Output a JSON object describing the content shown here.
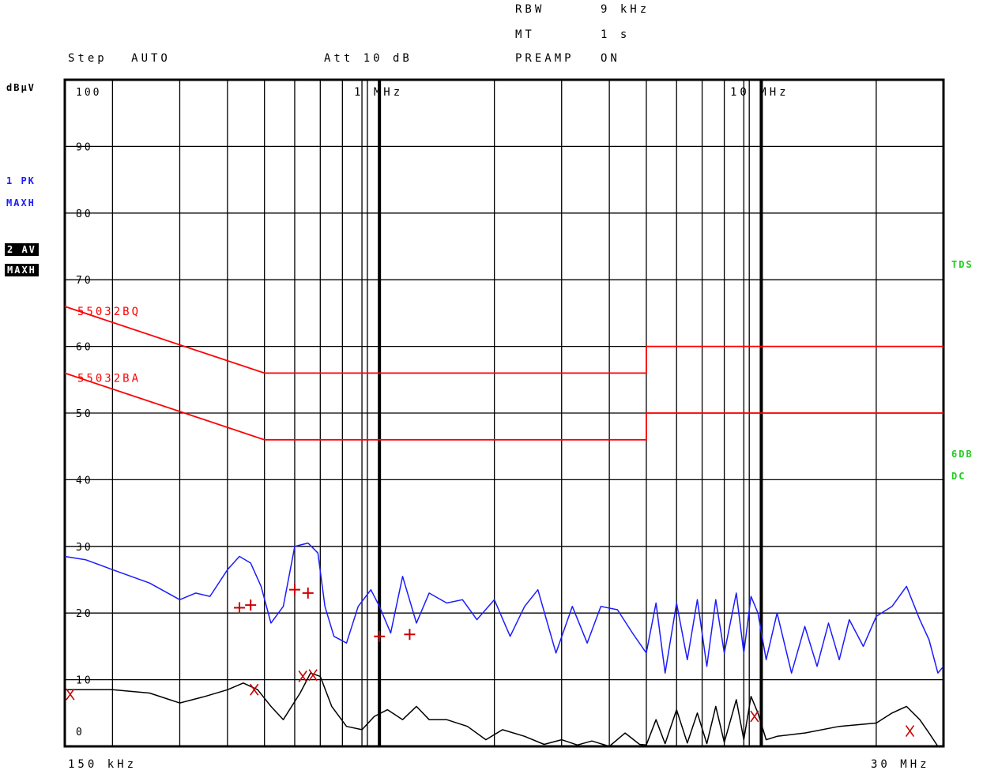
{
  "header": {
    "rbw_label": "RBW",
    "rbw_value": "9 kHz",
    "mt_label": "MT",
    "mt_value": "1 s",
    "preamp_label": "PREAMP",
    "preamp_value": "ON",
    "step": "Step AUTO",
    "att": "Att 10 dB"
  },
  "left_panel": {
    "unit": "dBµV",
    "trace1": "1 PK",
    "trace1_mode": "MAXH",
    "trace2": "2 AV",
    "trace2_mode": "MAXH"
  },
  "right_panel": {
    "tds": "TDS",
    "sixdb": "6DB",
    "dc": "DC"
  },
  "axis": {
    "x_start": "150 kHz",
    "x_end": "30 MHz",
    "mhz1": "1 MHz",
    "mhz10": "10 MHz"
  },
  "colors": {
    "peak": "#1c1cff",
    "average": "#000000",
    "limit": "#ff0000",
    "marker": "#cc0000",
    "status": "#22cc22"
  },
  "chart_data": {
    "type": "line",
    "x_scale": "log",
    "xlim_mhz": [
      0.15,
      30
    ],
    "ylim": [
      0,
      100
    ],
    "ylabel": "dBµV",
    "y_ticks": [
      0,
      10,
      20,
      30,
      40,
      50,
      60,
      70,
      80,
      90,
      100
    ],
    "limit_lines": [
      {
        "name": "55032BQ",
        "points_mhz_db": [
          [
            0.15,
            66
          ],
          [
            0.5,
            56
          ],
          [
            5,
            56
          ],
          [
            5,
            60
          ],
          [
            30,
            60
          ]
        ]
      },
      {
        "name": "55032BA",
        "points_mhz_db": [
          [
            0.15,
            56
          ],
          [
            0.5,
            46
          ],
          [
            5,
            46
          ],
          [
            5,
            50
          ],
          [
            30,
            50
          ]
        ]
      }
    ],
    "series": [
      {
        "name": "1 PK",
        "points_mhz_db": [
          [
            0.15,
            28.5
          ],
          [
            0.17,
            28
          ],
          [
            0.2,
            26.5
          ],
          [
            0.25,
            24.5
          ],
          [
            0.3,
            22
          ],
          [
            0.33,
            23
          ],
          [
            0.36,
            22.5
          ],
          [
            0.4,
            26.5
          ],
          [
            0.43,
            28.5
          ],
          [
            0.46,
            27.5
          ],
          [
            0.49,
            24
          ],
          [
            0.52,
            18.5
          ],
          [
            0.56,
            21
          ],
          [
            0.6,
            30
          ],
          [
            0.65,
            30.5
          ],
          [
            0.69,
            29
          ],
          [
            0.72,
            21
          ],
          [
            0.76,
            16.5
          ],
          [
            0.82,
            15.5
          ],
          [
            0.88,
            21
          ],
          [
            0.95,
            23.5
          ],
          [
            1.0,
            21
          ],
          [
            1.07,
            17
          ],
          [
            1.15,
            25.5
          ],
          [
            1.25,
            18.5
          ],
          [
            1.35,
            23
          ],
          [
            1.5,
            21.5
          ],
          [
            1.65,
            22
          ],
          [
            1.8,
            19
          ],
          [
            2.0,
            22
          ],
          [
            2.2,
            16.5
          ],
          [
            2.4,
            21
          ],
          [
            2.6,
            23.5
          ],
          [
            2.9,
            14
          ],
          [
            3.2,
            21
          ],
          [
            3.5,
            15.5
          ],
          [
            3.8,
            21
          ],
          [
            4.2,
            20.5
          ],
          [
            4.6,
            17
          ],
          [
            5.0,
            14
          ],
          [
            5.3,
            21.5
          ],
          [
            5.6,
            11
          ],
          [
            6.0,
            21.5
          ],
          [
            6.4,
            13
          ],
          [
            6.8,
            22
          ],
          [
            7.2,
            12
          ],
          [
            7.6,
            22
          ],
          [
            8.0,
            14
          ],
          [
            8.6,
            23
          ],
          [
            9.0,
            14
          ],
          [
            9.4,
            22.5
          ],
          [
            9.8,
            20
          ],
          [
            10.3,
            13
          ],
          [
            11,
            20
          ],
          [
            12,
            11
          ],
          [
            13,
            18
          ],
          [
            14,
            12
          ],
          [
            15,
            18.5
          ],
          [
            16,
            13
          ],
          [
            17,
            19
          ],
          [
            18.5,
            15
          ],
          [
            20,
            19.5
          ],
          [
            22,
            21
          ],
          [
            24,
            24
          ],
          [
            26,
            19
          ],
          [
            27.5,
            16
          ],
          [
            29,
            11
          ],
          [
            30,
            12
          ]
        ]
      },
      {
        "name": "2 AV",
        "points_mhz_db": [
          [
            0.15,
            8.5
          ],
          [
            0.17,
            8.5
          ],
          [
            0.2,
            8.5
          ],
          [
            0.25,
            8
          ],
          [
            0.3,
            6.5
          ],
          [
            0.35,
            7.5
          ],
          [
            0.4,
            8.5
          ],
          [
            0.44,
            9.5
          ],
          [
            0.48,
            8.5
          ],
          [
            0.52,
            6
          ],
          [
            0.56,
            4
          ],
          [
            0.62,
            8
          ],
          [
            0.66,
            11
          ],
          [
            0.7,
            10.5
          ],
          [
            0.75,
            6
          ],
          [
            0.82,
            3
          ],
          [
            0.9,
            2.5
          ],
          [
            0.97,
            4.5
          ],
          [
            1.05,
            5.5
          ],
          [
            1.15,
            4
          ],
          [
            1.25,
            6
          ],
          [
            1.35,
            4
          ],
          [
            1.5,
            4
          ],
          [
            1.7,
            3
          ],
          [
            1.9,
            1
          ],
          [
            2.1,
            2.5
          ],
          [
            2.4,
            1.5
          ],
          [
            2.7,
            0.3
          ],
          [
            3.0,
            1
          ],
          [
            3.3,
            0.2
          ],
          [
            3.6,
            0.8
          ],
          [
            4.0,
            0
          ],
          [
            4.4,
            2
          ],
          [
            4.8,
            0.3
          ],
          [
            5.0,
            0.2
          ],
          [
            5.3,
            4
          ],
          [
            5.6,
            0.4
          ],
          [
            6.0,
            5.5
          ],
          [
            6.4,
            0.5
          ],
          [
            6.8,
            5
          ],
          [
            7.2,
            0.4
          ],
          [
            7.6,
            6
          ],
          [
            8.0,
            0.6
          ],
          [
            8.6,
            7
          ],
          [
            9.0,
            1
          ],
          [
            9.4,
            7.5
          ],
          [
            9.8,
            5
          ],
          [
            10.3,
            1
          ],
          [
            11,
            1.5
          ],
          [
            13,
            2
          ],
          [
            16,
            3
          ],
          [
            20,
            3.5
          ],
          [
            22,
            5
          ],
          [
            24,
            6
          ],
          [
            26,
            4
          ],
          [
            27.5,
            2
          ],
          [
            29,
            0
          ],
          [
            30,
            0
          ]
        ]
      }
    ],
    "peak_markers_mhz_db": [
      [
        0.43,
        20.8
      ],
      [
        0.46,
        21.2
      ],
      [
        0.6,
        23.5
      ],
      [
        0.65,
        23
      ],
      [
        1.0,
        16.5
      ],
      [
        1.2,
        16.8
      ]
    ],
    "avg_markers_mhz_db": [
      [
        0.155,
        7.8
      ],
      [
        0.47,
        8.5
      ],
      [
        0.63,
        10.5
      ],
      [
        0.67,
        10.7
      ],
      [
        9.6,
        4.5
      ],
      [
        24.5,
        2.3
      ]
    ]
  }
}
